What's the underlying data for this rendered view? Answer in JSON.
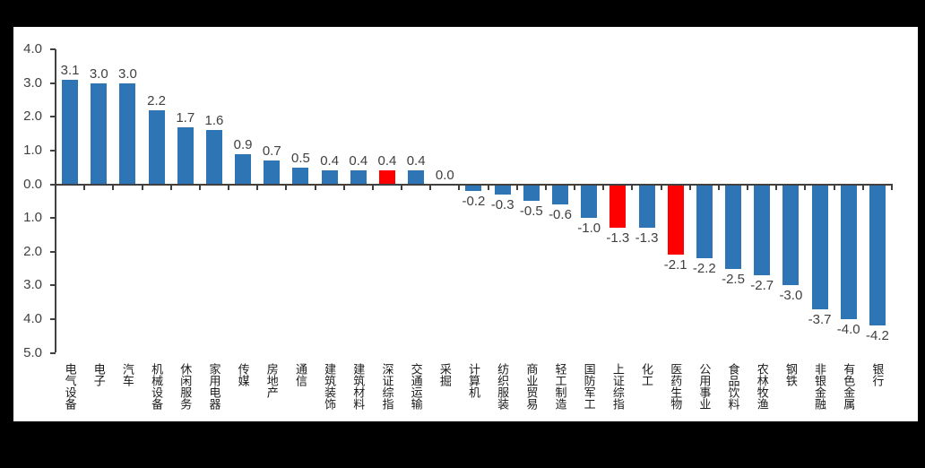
{
  "frame": {
    "background_color": "#000000",
    "panel_background_color": "#FFFFFF"
  },
  "chart_data": {
    "type": "bar",
    "title": "",
    "xlabel": "",
    "ylabel": "",
    "grid": false,
    "legend": null,
    "bar_orientation": "vertical",
    "value_label_position": "outside-end",
    "categories": [
      "电气设备",
      "电子",
      "汽车",
      "机械设备",
      "休闲服务",
      "家用电器",
      "传媒",
      "房地产",
      "通信",
      "建筑装饰",
      "建筑材料",
      "深证综指",
      "交通运输",
      "采掘",
      "计算机",
      "纺织服装",
      "商业贸易",
      "轻工制造",
      "国防军工",
      "上证综指",
      "化工",
      "医药生物",
      "公用事业",
      "食品饮料",
      "农林牧渔",
      "钢铁",
      "非银金融",
      "有色金属",
      "银行"
    ],
    "values": [
      3.1,
      3.0,
      3.0,
      2.2,
      1.7,
      1.6,
      0.9,
      0.7,
      0.5,
      0.4,
      0.4,
      0.4,
      0.4,
      0.0,
      -0.2,
      -0.3,
      -0.5,
      -0.6,
      -1.0,
      -1.3,
      -1.3,
      -2.1,
      -2.2,
      -2.5,
      -2.7,
      -3.0,
      -3.7,
      -4.0,
      -4.2
    ],
    "data_labels": [
      "3.1",
      "3.0",
      "3.0",
      "2.2",
      "1.7",
      "1.6",
      "0.9",
      "0.7",
      "0.5",
      "0.4",
      "0.4",
      "0.4",
      "0.4",
      "0.0",
      "-0.2",
      "-0.3",
      "-0.5",
      "-0.6",
      "-1.0",
      "-1.3",
      "-1.3",
      "-2.1",
      "-2.2",
      "-2.5",
      "-2.7",
      "-3.0",
      "-3.7",
      "-4.0",
      "-4.2"
    ],
    "highlight_indices": [
      11,
      19,
      21
    ],
    "highlighted_categories": [
      "深证综指",
      "上证综指",
      "医药生物"
    ],
    "colors": {
      "bar_default": "#2E75B6",
      "bar_highlight": "#FF0000",
      "axis": "#404040",
      "value_label": "#404040",
      "category_label": "#1A1A1A"
    },
    "y_axis": {
      "min": -5.0,
      "max": 4.0,
      "tick_interval": 1.0,
      "tick_labels_top_to_bottom": [
        "4.0",
        "3.0",
        "2.0",
        "1.0",
        "0.0",
        "1.0",
        "2.0",
        "3.0",
        "4.0",
        "5.0"
      ]
    },
    "ylim": [
      -5.0,
      4.0
    ]
  }
}
